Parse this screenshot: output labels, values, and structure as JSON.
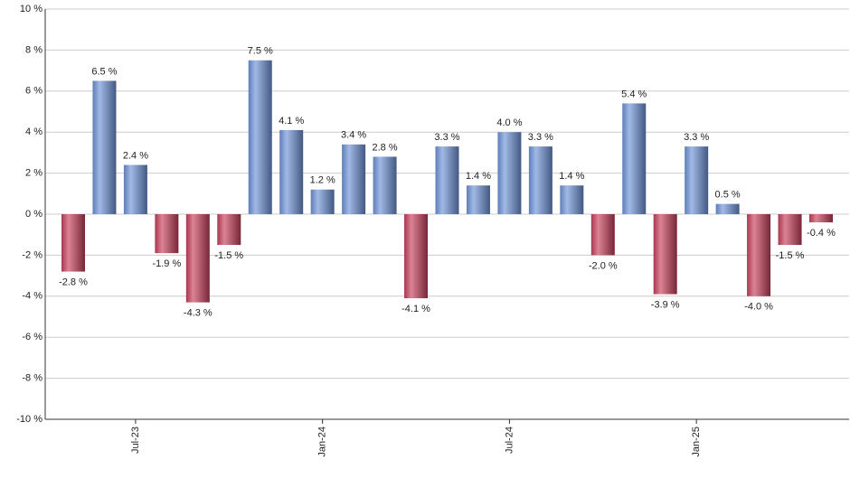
{
  "chart_data": {
    "type": "bar",
    "categories": [
      null,
      null,
      "Jul-23",
      null,
      null,
      null,
      null,
      null,
      "Jan-24",
      null,
      null,
      null,
      null,
      null,
      "Jul-24",
      null,
      null,
      null,
      null,
      null,
      "Jan-25",
      null,
      null,
      null,
      null
    ],
    "values": [
      -2.8,
      6.5,
      2.4,
      -1.9,
      -4.3,
      -1.5,
      7.5,
      4.1,
      1.2,
      3.4,
      2.8,
      -4.1,
      3.3,
      1.4,
      4.0,
      3.3,
      1.4,
      -2.0,
      5.4,
      -3.9,
      3.3,
      0.5,
      -4.0,
      -1.5,
      -0.4
    ],
    "value_labels": [
      "-2.8 %",
      "6.5 %",
      "2.4 %",
      "-1.9 %",
      "-4.3 %",
      "-1.5 %",
      "7.5 %",
      "4.1 %",
      "1.2 %",
      "3.4 %",
      "2.8 %",
      "-4.1 %",
      "3.3 %",
      "1.4 %",
      "4.0 %",
      "3.3 %",
      "1.4 %",
      "-2.0 %",
      "5.4 %",
      "-3.9 %",
      "3.3 %",
      "0.5 %",
      "-4.0 %",
      "-1.5 %",
      "-0.4 %"
    ],
    "positive_color": "#6f94d8",
    "negative_color": "#c8405c",
    "ylim": [
      -10,
      10
    ],
    "yticks": [
      {
        "value": -10,
        "label": "-10 %"
      },
      {
        "value": -8,
        "label": "-8 %"
      },
      {
        "value": -6,
        "label": "-6 %"
      },
      {
        "value": -4,
        "label": "-4 %"
      },
      {
        "value": -2,
        "label": "-2 %"
      },
      {
        "value": 0,
        "label": "0 %"
      },
      {
        "value": 2,
        "label": "2 %"
      },
      {
        "value": 4,
        "label": "4 %"
      },
      {
        "value": 6,
        "label": "6 %"
      },
      {
        "value": 8,
        "label": "8 %"
      },
      {
        "value": 10,
        "label": "10 %"
      }
    ],
    "grid": true
  }
}
